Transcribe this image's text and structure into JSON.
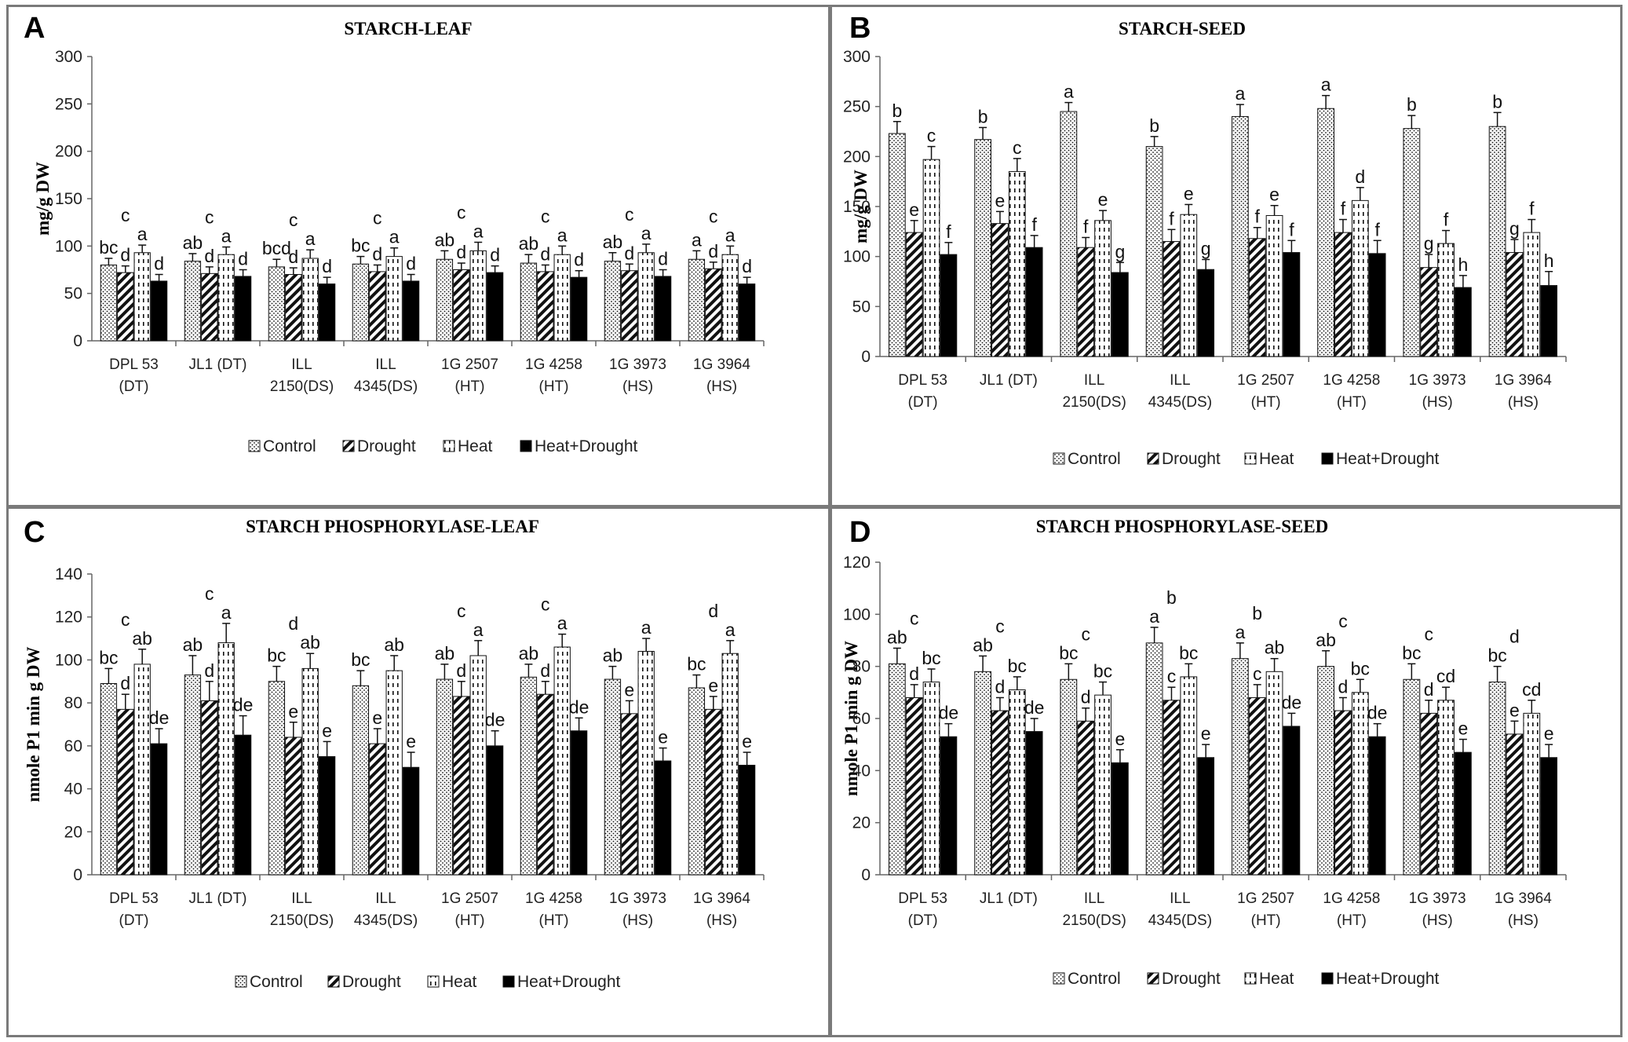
{
  "categories": [
    "DPL 53 (DT)",
    "JL1 (DT)",
    "ILL 2150(DS)",
    "ILL 4345(DS)",
    "1G 2507 (HT)",
    "1G 4258 (HT)",
    "1G 3973 (HS)",
    "1G 3964 (HS)"
  ],
  "category_lines": [
    [
      "DPL 53",
      "(DT)"
    ],
    [
      "JL1 (DT)"
    ],
    [
      "ILL",
      "2150(DS)"
    ],
    [
      "ILL",
      "4345(DS)"
    ],
    [
      "1G 2507",
      "(HT)"
    ],
    [
      "1G 4258",
      "(HT)"
    ],
    [
      "1G 3973",
      "(HS)"
    ],
    [
      "1G 3964",
      "(HS)"
    ]
  ],
  "legend": [
    "Control",
    "Drought",
    "Heat",
    "Heat+Drought"
  ],
  "chart_data": [
    {
      "panel": "A",
      "type": "bar",
      "title": "STARCH-LEAF",
      "ylabel": "mg/g DW",
      "xlabel": "",
      "ylim": [
        0,
        300
      ],
      "yticks": [
        0,
        50,
        100,
        150,
        200,
        250,
        300
      ],
      "categories": [
        "DPL 53 (DT)",
        "JL1 (DT)",
        "ILL 2150(DS)",
        "ILL 4345(DS)",
        "1G 2507 (HT)",
        "1G 4258 (HT)",
        "1G 3973 (HS)",
        "1G 3964 (HS)"
      ],
      "series": [
        {
          "name": "Control",
          "values": [
            80,
            84,
            78,
            81,
            86,
            82,
            84,
            86
          ],
          "errors": [
            7,
            8,
            8,
            8,
            9,
            9,
            9,
            9
          ],
          "labels": [
            "bc",
            "ab",
            "bcd",
            "bc",
            "ab",
            "ab",
            "ab",
            "a"
          ]
        },
        {
          "name": "Drought",
          "values": [
            72,
            71,
            70,
            73,
            75,
            73,
            74,
            76
          ],
          "errors": [
            7,
            7,
            7,
            7,
            7,
            7,
            7,
            7
          ],
          "labels": [
            "d",
            "d",
            "d",
            "d",
            "d",
            "d",
            "d",
            "d"
          ]
        },
        {
          "name": "Heat",
          "values": [
            93,
            91,
            87,
            89,
            95,
            91,
            93,
            91
          ],
          "errors": [
            8,
            8,
            9,
            9,
            9,
            9,
            9,
            9
          ],
          "labels": [
            "a",
            "a",
            "a",
            "a",
            "a",
            "a",
            "a",
            "a"
          ]
        },
        {
          "name": "Heat+Drought",
          "values": [
            63,
            68,
            60,
            63,
            72,
            67,
            68,
            60
          ],
          "errors": [
            7,
            7,
            7,
            7,
            7,
            7,
            7,
            7
          ],
          "labels": [
            "d",
            "d",
            "d",
            "d",
            "d",
            "d",
            "d",
            "d"
          ]
        }
      ],
      "extra_labels": [
        "c",
        "c",
        "c",
        "c",
        "c",
        "c",
        "c",
        "c"
      ]
    },
    {
      "panel": "B",
      "type": "bar",
      "title": "STARCH-SEED",
      "ylabel": "mg/g DW",
      "xlabel": "",
      "ylim": [
        0,
        300
      ],
      "yticks": [
        0,
        50,
        100,
        150,
        200,
        250,
        300
      ],
      "categories": [
        "DPL 53 (DT)",
        "JL1 (DT)",
        "ILL 2150(DS)",
        "ILL 4345(DS)",
        "1G 2507 (HT)",
        "1G 4258 (HT)",
        "1G 3973 (HS)",
        "1G 3964 (HS)"
      ],
      "series": [
        {
          "name": "Control",
          "values": [
            223,
            217,
            245,
            210,
            240,
            248,
            228,
            230
          ],
          "errors": [
            12,
            12,
            9,
            10,
            12,
            13,
            13,
            14
          ],
          "labels": [
            "b",
            "b",
            "a",
            "b",
            "a",
            "a",
            "b",
            "b"
          ]
        },
        {
          "name": "Drought",
          "values": [
            124,
            133,
            109,
            115,
            118,
            124,
            89,
            104
          ],
          "errors": [
            12,
            12,
            10,
            12,
            11,
            13,
            13,
            13
          ],
          "labels": [
            "e",
            "e",
            "f",
            "f",
            "f",
            "f",
            "g",
            "g"
          ]
        },
        {
          "name": "Heat",
          "values": [
            197,
            185,
            136,
            142,
            141,
            156,
            113,
            124
          ],
          "errors": [
            13,
            13,
            10,
            10,
            10,
            13,
            13,
            13
          ],
          "labels": [
            "c",
            "c",
            "e",
            "e",
            "e",
            "d",
            "f",
            "f"
          ]
        },
        {
          "name": "Heat+Drought",
          "values": [
            102,
            109,
            84,
            87,
            104,
            103,
            69,
            71
          ],
          "errors": [
            12,
            12,
            10,
            10,
            12,
            13,
            12,
            14
          ],
          "labels": [
            "f",
            "f",
            "g",
            "g",
            "f",
            "f",
            "h",
            "h"
          ]
        }
      ]
    },
    {
      "panel": "C",
      "type": "bar",
      "title": "STARCH PHOSPHORYLASE-LEAF",
      "ylabel": "nmole P1 min g DW",
      "xlabel": "",
      "ylim": [
        0,
        140
      ],
      "yticks": [
        0,
        20,
        40,
        60,
        80,
        100,
        120,
        140
      ],
      "categories": [
        "DPL 53 (DT)",
        "JL1 (DT)",
        "ILL 2150(DS)",
        "ILL 4345(DS)",
        "1G 2507 (HT)",
        "1G 4258 (HT)",
        "1G 3973 (HS)",
        "1G 3964 (HS)"
      ],
      "series": [
        {
          "name": "Control",
          "values": [
            89,
            93,
            90,
            88,
            91,
            92,
            91,
            87
          ],
          "errors": [
            7,
            9,
            7,
            7,
            7,
            6,
            6,
            6
          ],
          "labels": [
            "bc",
            "ab",
            "bc",
            "bc",
            "ab",
            "ab",
            "ab",
            "bc"
          ]
        },
        {
          "name": "Drought",
          "values": [
            77,
            81,
            64,
            61,
            83,
            84,
            75,
            77
          ],
          "errors": [
            7,
            9,
            7,
            7,
            7,
            6,
            6,
            6
          ],
          "labels": [
            "d",
            "d",
            "e",
            "e",
            "d",
            "d",
            "e",
            "e"
          ]
        },
        {
          "name": "Heat",
          "values": [
            98,
            108,
            96,
            95,
            102,
            106,
            104,
            103
          ],
          "errors": [
            7,
            9,
            7,
            7,
            7,
            6,
            6,
            6
          ],
          "labels": [
            "ab",
            "a",
            "ab",
            "ab",
            "a",
            "a",
            "a",
            "a"
          ]
        },
        {
          "name": "Heat+Drought",
          "values": [
            61,
            65,
            55,
            50,
            60,
            67,
            53,
            51
          ],
          "errors": [
            7,
            9,
            7,
            7,
            7,
            6,
            6,
            6
          ],
          "labels": [
            "de",
            "de",
            "e",
            "e",
            "de",
            "de",
            "e",
            "e"
          ]
        }
      ],
      "extra_labels": [
        "c",
        "c",
        "d",
        "",
        "c",
        "c",
        "",
        "d"
      ]
    },
    {
      "panel": "D",
      "type": "bar",
      "title": "STARCH PHOSPHORYLASE-SEED",
      "ylabel": "nmole P1 min g DW",
      "xlabel": "",
      "ylim": [
        0,
        120
      ],
      "yticks": [
        0,
        20,
        40,
        60,
        80,
        100,
        120
      ],
      "categories": [
        "DPL 53 (DT)",
        "JL1 (DT)",
        "ILL 2150(DS)",
        "ILL 4345(DS)",
        "1G 2507 (HT)",
        "1G 4258 (HT)",
        "1G 3973 (HS)",
        "1G 3964 (HS)"
      ],
      "series": [
        {
          "name": "Control",
          "values": [
            81,
            78,
            75,
            89,
            83,
            80,
            75,
            74
          ],
          "errors": [
            6,
            6,
            6,
            6,
            6,
            6,
            6,
            6
          ],
          "labels": [
            "ab",
            "ab",
            "bc",
            "a",
            "a",
            "ab",
            "bc",
            "bc"
          ]
        },
        {
          "name": "Drought",
          "values": [
            68,
            63,
            59,
            67,
            68,
            63,
            62,
            54
          ],
          "errors": [
            5,
            5,
            5,
            5,
            5,
            5,
            5,
            5
          ],
          "labels": [
            "d",
            "d",
            "d",
            "c",
            "c",
            "d",
            "d",
            "e"
          ]
        },
        {
          "name": "Heat",
          "values": [
            74,
            71,
            69,
            76,
            78,
            70,
            67,
            62
          ],
          "errors": [
            5,
            5,
            5,
            5,
            5,
            5,
            5,
            5
          ],
          "labels": [
            "bc",
            "bc",
            "bc",
            "bc",
            "ab",
            "bc",
            "cd",
            "cd"
          ]
        },
        {
          "name": "Heat+Drought",
          "values": [
            53,
            55,
            43,
            45,
            57,
            53,
            47,
            45
          ],
          "errors": [
            5,
            5,
            5,
            5,
            5,
            5,
            5,
            5
          ],
          "labels": [
            "de",
            "de",
            "e",
            "e",
            "de",
            "de",
            "e",
            "e"
          ]
        }
      ],
      "extra_labels": [
        "c",
        "c",
        "c",
        "b",
        "b",
        "c",
        "c",
        "d"
      ]
    }
  ]
}
